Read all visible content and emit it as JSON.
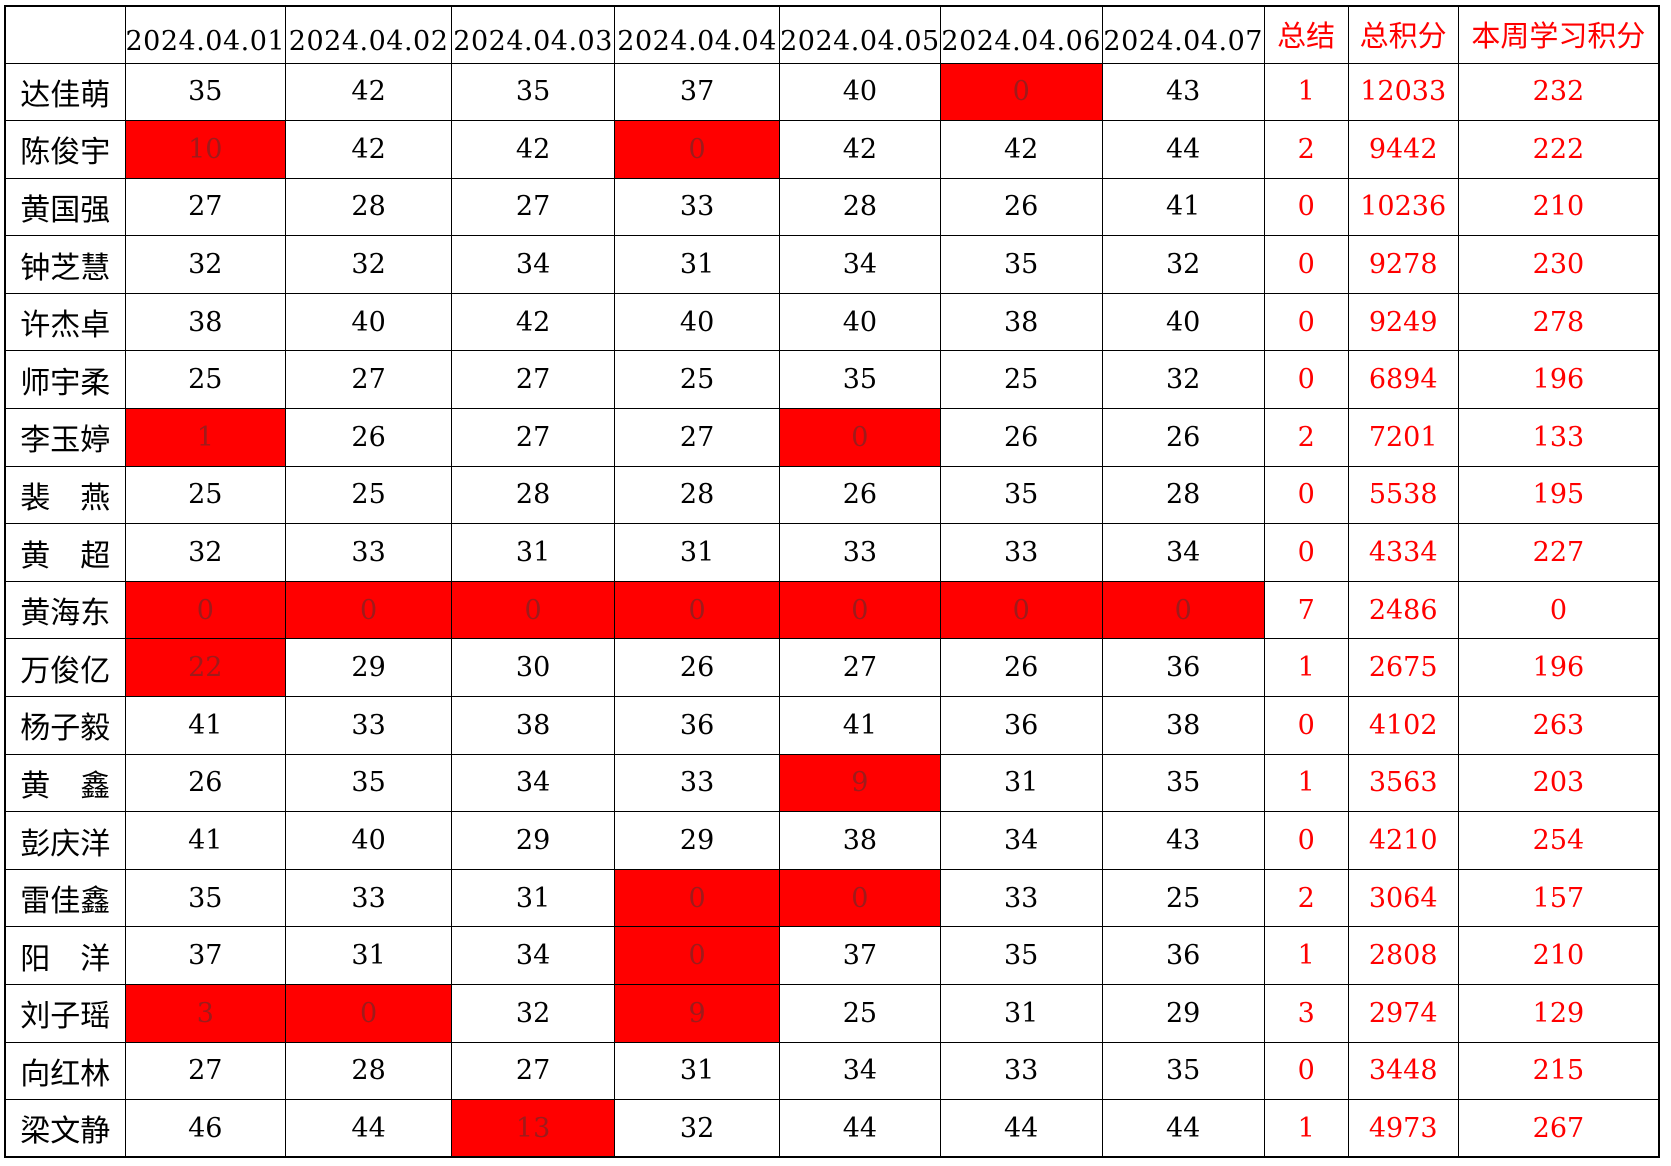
{
  "table": {
    "columns": [
      "",
      "2024.04.01",
      "2024.04.02",
      "2024.04.03",
      "2024.04.04",
      "2024.04.05",
      "2024.04.06",
      "2024.04.07",
      "总结",
      "总积分",
      "本周学习积分"
    ],
    "rows": [
      {
        "name": "达佳萌",
        "scores": [
          35,
          42,
          35,
          37,
          40,
          0,
          43
        ],
        "highlight": [
          5
        ],
        "summary": 1,
        "total": 12033,
        "week": 232
      },
      {
        "name": "陈俊宇",
        "scores": [
          10,
          42,
          42,
          0,
          42,
          42,
          44
        ],
        "highlight": [
          0,
          3
        ],
        "summary": 2,
        "total": 9442,
        "week": 222
      },
      {
        "name": "黄国强",
        "scores": [
          27,
          28,
          27,
          33,
          28,
          26,
          41
        ],
        "highlight": [],
        "summary": 0,
        "total": 10236,
        "week": 210
      },
      {
        "name": "钟芝慧",
        "scores": [
          32,
          32,
          34,
          31,
          34,
          35,
          32
        ],
        "highlight": [],
        "summary": 0,
        "total": 9278,
        "week": 230
      },
      {
        "name": "许杰卓",
        "scores": [
          38,
          40,
          42,
          40,
          40,
          38,
          40
        ],
        "highlight": [],
        "summary": 0,
        "total": 9249,
        "week": 278
      },
      {
        "name": "师宇柔",
        "scores": [
          25,
          27,
          27,
          25,
          35,
          25,
          32
        ],
        "highlight": [],
        "summary": 0,
        "total": 6894,
        "week": 196
      },
      {
        "name": "李玉婷",
        "scores": [
          1,
          26,
          27,
          27,
          0,
          26,
          26
        ],
        "highlight": [
          0,
          4
        ],
        "summary": 2,
        "total": 7201,
        "week": 133
      },
      {
        "name": "裴　燕",
        "scores": [
          25,
          25,
          28,
          28,
          26,
          35,
          28
        ],
        "highlight": [],
        "summary": 0,
        "total": 5538,
        "week": 195
      },
      {
        "name": "黄　超",
        "scores": [
          32,
          33,
          31,
          31,
          33,
          33,
          34
        ],
        "highlight": [],
        "summary": 0,
        "total": 4334,
        "week": 227
      },
      {
        "name": "黄海东",
        "scores": [
          0,
          0,
          0,
          0,
          0,
          0,
          0
        ],
        "highlight": [
          0,
          1,
          2,
          3,
          4,
          5,
          6
        ],
        "summary": 7,
        "total": 2486,
        "week": 0
      },
      {
        "name": "万俊亿",
        "scores": [
          22,
          29,
          30,
          26,
          27,
          26,
          36
        ],
        "highlight": [
          0
        ],
        "summary": 1,
        "total": 2675,
        "week": 196
      },
      {
        "name": "杨子毅",
        "scores": [
          41,
          33,
          38,
          36,
          41,
          36,
          38
        ],
        "highlight": [],
        "summary": 0,
        "total": 4102,
        "week": 263
      },
      {
        "name": "黄　鑫",
        "scores": [
          26,
          35,
          34,
          33,
          9,
          31,
          35
        ],
        "highlight": [
          4
        ],
        "summary": 1,
        "total": 3563,
        "week": 203
      },
      {
        "name": "彭庆洋",
        "scores": [
          41,
          40,
          29,
          29,
          38,
          34,
          43
        ],
        "highlight": [],
        "summary": 0,
        "total": 4210,
        "week": 254
      },
      {
        "name": "雷佳鑫",
        "scores": [
          35,
          33,
          31,
          0,
          0,
          33,
          25
        ],
        "highlight": [
          3,
          4
        ],
        "summary": 2,
        "total": 3064,
        "week": 157
      },
      {
        "name": "阳　洋",
        "scores": [
          37,
          31,
          34,
          0,
          37,
          35,
          36
        ],
        "highlight": [
          3
        ],
        "summary": 1,
        "total": 2808,
        "week": 210
      },
      {
        "name": "刘子瑶",
        "scores": [
          3,
          0,
          32,
          9,
          25,
          31,
          29
        ],
        "highlight": [
          0,
          1,
          3
        ],
        "summary": 3,
        "total": 2974,
        "week": 129
      },
      {
        "name": "向红林",
        "scores": [
          27,
          28,
          27,
          31,
          34,
          33,
          35
        ],
        "highlight": [],
        "summary": 0,
        "total": 3448,
        "week": 215
      },
      {
        "name": "梁文静",
        "scores": [
          46,
          44,
          13,
          32,
          44,
          44,
          44
        ],
        "highlight": [
          2
        ],
        "summary": 1,
        "total": 4973,
        "week": 267
      }
    ]
  },
  "colors": {
    "highlight_bg": "#ff0000",
    "highlight_text": "#9e1b1b",
    "accent_text": "#ff0000",
    "grid_border": "#000000"
  }
}
